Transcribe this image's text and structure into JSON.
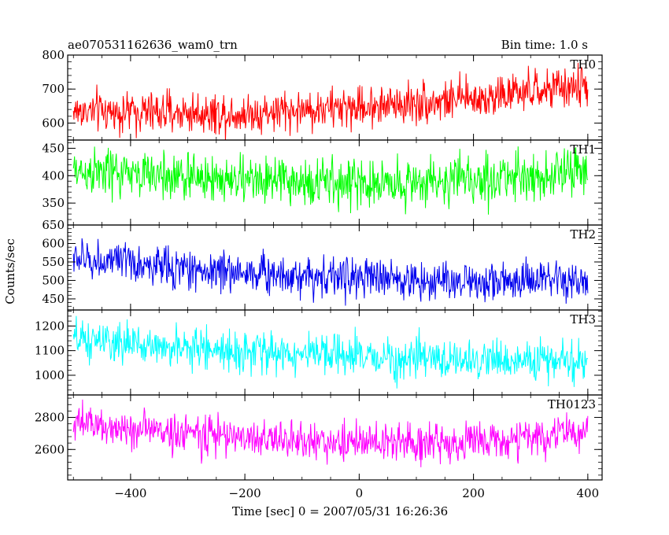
{
  "header": {
    "title": "ae070531162636_wam0_trn",
    "bin_time": "Bin time: 1.0 s"
  },
  "chart_data": {
    "type": "line",
    "ylabel": "Counts/sec",
    "xlabel": "Time [sec] 0 = 2007/05/31 16:26:36",
    "xlim": [
      -510,
      425
    ],
    "x_ticks": [
      -400,
      -200,
      0,
      200,
      400
    ],
    "x_tick_labels": [
      "−400",
      "−200",
      "0",
      "200",
      "400"
    ],
    "x_range": [
      -500,
      400
    ],
    "bin_time_s": 1.0,
    "panels": [
      {
        "name": "TH0",
        "color": "#ff0000",
        "ylim": [
          550,
          800
        ],
        "yticks": [
          600,
          700,
          800
        ],
        "trend": [
          [
            -500,
            635
          ],
          [
            -200,
            628
          ],
          [
            0,
            648
          ],
          [
            200,
            672
          ],
          [
            400,
            710
          ]
        ],
        "noise": 30
      },
      {
        "name": "TH1",
        "color": "#00ff00",
        "ylim": [
          310,
          465
        ],
        "yticks": [
          350,
          400,
          450
        ],
        "trend": [
          [
            -500,
            408
          ],
          [
            -200,
            392
          ],
          [
            0,
            385
          ],
          [
            200,
            392
          ],
          [
            400,
            408
          ]
        ],
        "noise": 22
      },
      {
        "name": "TH2",
        "color": "#0000ee",
        "ylim": [
          420,
          650
        ],
        "yticks": [
          450,
          500,
          550,
          600,
          650
        ],
        "trend": [
          [
            -500,
            560
          ],
          [
            -300,
            530
          ],
          [
            -100,
            515
          ],
          [
            100,
            500
          ],
          [
            400,
            495
          ]
        ],
        "noise": 27
      },
      {
        "name": "TH3",
        "color": "#00ffff",
        "ylim": [
          920,
          1265
        ],
        "yticks": [
          1000,
          1100,
          1200
        ],
        "trend": [
          [
            -500,
            1140
          ],
          [
            -300,
            1110
          ],
          [
            -100,
            1085
          ],
          [
            100,
            1065
          ],
          [
            400,
            1055
          ]
        ],
        "noise": 40
      },
      {
        "name": "TH0123",
        "color": "#ff00ff",
        "ylim": [
          2410,
          2940
        ],
        "yticks": [
          2600,
          2800
        ],
        "trend": [
          [
            -500,
            2760
          ],
          [
            -300,
            2700
          ],
          [
            -100,
            2650
          ],
          [
            100,
            2640
          ],
          [
            250,
            2655
          ],
          [
            400,
            2710
          ]
        ],
        "noise": 60
      }
    ]
  }
}
